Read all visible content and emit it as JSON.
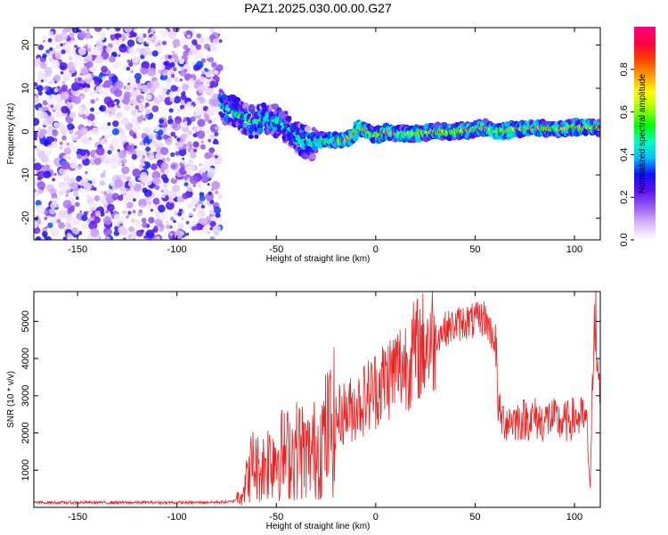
{
  "title": "PAZ1.2025.030.00.00.G27",
  "chart_data": [
    {
      "type": "heatmap",
      "xlabel": "Height of straight line (km)",
      "ylabel": "Frequency (Hz)",
      "xlim": [
        -172,
        113
      ],
      "ylim": [
        -25,
        24
      ],
      "xticks": [
        -150,
        -100,
        -50,
        0,
        50,
        100
      ],
      "yticks": [
        -20,
        -10,
        0,
        10,
        20
      ],
      "colorbar": {
        "label": "Normalized spectral amplitude",
        "range": [
          0,
          1
        ],
        "ticks": [
          0.0,
          0.2,
          0.4,
          0.6,
          0.8
        ],
        "tick_labels": [
          "0.0",
          "0.2",
          "0.4",
          "0.6",
          "0.8"
        ],
        "colors": [
          "#ffffff",
          "#d8b8f8",
          "#9b5cf0",
          "#5a10f0",
          "#1010ff",
          "#00c0ff",
          "#00ffc0",
          "#00ff00",
          "#a0ff00",
          "#ffff00",
          "#ffa000",
          "#ff4000",
          "#ff0040",
          "#ff0080"
        ]
      },
      "ridge": [
        {
          "x": -78,
          "y": 6
        },
        {
          "x": -70,
          "y": 4
        },
        {
          "x": -62,
          "y": 2
        },
        {
          "x": -55,
          "y": 3
        },
        {
          "x": -48,
          "y": 2
        },
        {
          "x": -42,
          "y": 0
        },
        {
          "x": -37,
          "y": -2
        },
        {
          "x": -33,
          "y": -3
        },
        {
          "x": -28,
          "y": -2
        },
        {
          "x": -22,
          "y": -2
        },
        {
          "x": -16,
          "y": -2
        },
        {
          "x": -12,
          "y": -1
        },
        {
          "x": -8,
          "y": 1
        },
        {
          "x": -4,
          "y": 0
        },
        {
          "x": 0,
          "y": -1
        },
        {
          "x": 5,
          "y": 0
        },
        {
          "x": 10,
          "y": -0.5
        },
        {
          "x": 20,
          "y": -0.5
        },
        {
          "x": 30,
          "y": 0
        },
        {
          "x": 40,
          "y": 0
        },
        {
          "x": 50,
          "y": 0.5
        },
        {
          "x": 55,
          "y": 1
        },
        {
          "x": 60,
          "y": 0
        },
        {
          "x": 70,
          "y": 0.5
        },
        {
          "x": 80,
          "y": 1
        },
        {
          "x": 90,
          "y": 0.5
        },
        {
          "x": 100,
          "y": 1
        },
        {
          "x": 108,
          "y": 1
        },
        {
          "x": 112,
          "y": 1
        }
      ]
    },
    {
      "type": "line",
      "xlabel": "Height of straight line (km)",
      "ylabel": "SNR (10 * v/v)",
      "xlim": [
        -172,
        113
      ],
      "ylim": [
        0,
        5800
      ],
      "xticks": [
        -150,
        -100,
        -50,
        0,
        50,
        100
      ],
      "yticks": [
        1000,
        2000,
        3000,
        4000,
        5000
      ],
      "color": "#ee2020",
      "series": [
        {
          "x": [
            -172,
            -160,
            -150,
            -140,
            -130,
            -120,
            -110,
            -100,
            -90,
            -80,
            -72,
            -68,
            -65,
            -62,
            -58,
            -54,
            -50,
            -46,
            -42,
            -38,
            -34,
            -30,
            -26,
            -22,
            -18,
            -14,
            -10,
            -6,
            -2,
            2,
            6,
            10,
            15,
            20,
            25,
            30,
            35,
            40,
            45,
            50,
            55,
            58,
            60,
            62,
            64,
            68,
            72,
            76,
            80,
            84,
            88,
            92,
            96,
            100,
            104,
            106,
            108,
            110,
            112,
            113
          ],
          "y": [
            130,
            130,
            130,
            130,
            130,
            130,
            130,
            130,
            130,
            140,
            150,
            350,
            700,
            1200,
            1000,
            1300,
            1500,
            1400,
            1500,
            1600,
            1400,
            1600,
            1900,
            2200,
            2500,
            2600,
            2700,
            2900,
            3100,
            3300,
            3500,
            3700,
            3900,
            4200,
            4400,
            4600,
            4800,
            4900,
            5000,
            5000,
            5100,
            4700,
            4500,
            2500,
            2350,
            2350,
            2350,
            2380,
            2400,
            2300,
            2400,
            2300,
            2300,
            2400,
            2400,
            2300,
            500,
            5900,
            3000,
            3300
          ]
        }
      ]
    }
  ]
}
